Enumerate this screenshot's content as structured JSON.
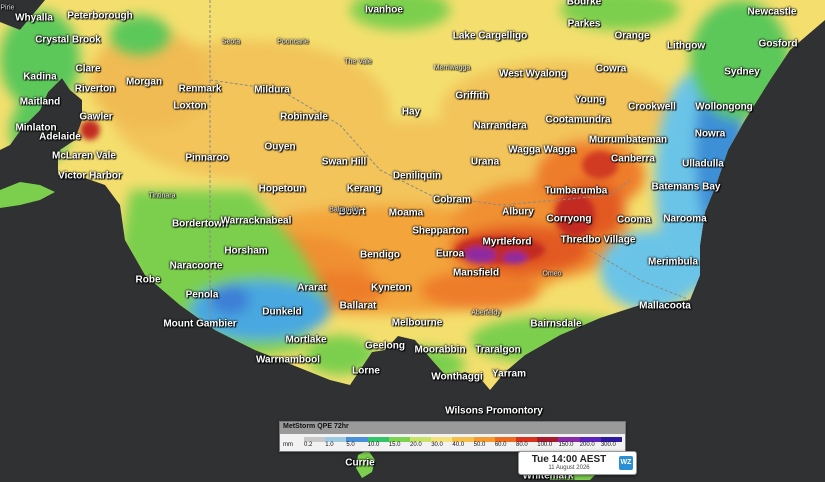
{
  "legend": {
    "title": "MetStorm QPE 72hr",
    "unit": "mm",
    "values": [
      "0.2",
      "1.0",
      "5.0",
      "10.0",
      "15.0",
      "20.0",
      "30.0",
      "40.0",
      "50.0",
      "60.0",
      "80.0",
      "100.0",
      "150.0",
      "200.0",
      "300.0"
    ],
    "colors": [
      "#c8c8c8",
      "#9ecae1",
      "#4a90d9",
      "#31c46b",
      "#7bd44f",
      "#c8e36a",
      "#f5e27a",
      "#f5c04a",
      "#f59a2e",
      "#ec6b1f",
      "#d9331e",
      "#a81b2a",
      "#8a2aa8",
      "#5a23c0",
      "#2d1aa0"
    ]
  },
  "timestamp": {
    "main": "Tue 14:00 AEST",
    "date": "11 August 2026",
    "logo": "WZ"
  },
  "colors": {
    "ocean": "#2f3133",
    "border": "#8a8a8a"
  },
  "places": [
    {
      "name": "Whyalla",
      "size": "major"
    },
    {
      "name": "Peterborough",
      "size": "major"
    },
    {
      "name": "Ivanhoe",
      "size": "major"
    },
    {
      "name": "Parkes",
      "size": "major"
    },
    {
      "name": "Newcastle",
      "size": "major"
    },
    {
      "name": "Crystal Brook",
      "size": "major"
    },
    {
      "name": "Orange",
      "size": "major"
    },
    {
      "name": "Gosford",
      "size": "major"
    },
    {
      "name": "Lake Cargelligo",
      "size": "major"
    },
    {
      "name": "Lithgow",
      "size": "major"
    },
    {
      "name": "Clare",
      "size": "major"
    },
    {
      "name": "West Wyalong",
      "size": "major"
    },
    {
      "name": "Cowra",
      "size": "major"
    },
    {
      "name": "Sydney",
      "size": "major"
    },
    {
      "name": "Kadina",
      "size": "major"
    },
    {
      "name": "Morgan",
      "size": "major"
    },
    {
      "name": "Riverton",
      "size": "major"
    },
    {
      "name": "Renmark",
      "size": "major"
    },
    {
      "name": "Mildura",
      "size": "major"
    },
    {
      "name": "Maitland",
      "size": "major"
    },
    {
      "name": "Griffith",
      "size": "major"
    },
    {
      "name": "Young",
      "size": "major"
    },
    {
      "name": "Loxton",
      "size": "major"
    },
    {
      "name": "Hay",
      "size": "major"
    },
    {
      "name": "Crookwell",
      "size": "major"
    },
    {
      "name": "Wollongong",
      "size": "major"
    },
    {
      "name": "Robinvale",
      "size": "major"
    },
    {
      "name": "Gawler",
      "size": "major"
    },
    {
      "name": "Cootamundra",
      "size": "major"
    },
    {
      "name": "Minlaton",
      "size": "major"
    },
    {
      "name": "Narrandera",
      "size": "major"
    },
    {
      "name": "Adelaide",
      "size": "major"
    },
    {
      "name": "Murrumbateman",
      "size": "major"
    },
    {
      "name": "Nowra",
      "size": "major"
    },
    {
      "name": "Ouyen",
      "size": "major"
    },
    {
      "name": "McLaren Vale",
      "size": "major"
    },
    {
      "name": "Wagga Wagga",
      "size": "major"
    },
    {
      "name": "Pinnaroo",
      "size": "major"
    },
    {
      "name": "Swan Hill",
      "size": "major"
    },
    {
      "name": "Urana",
      "size": "major"
    },
    {
      "name": "Canberra",
      "size": "major"
    },
    {
      "name": "Ulladulla",
      "size": "major"
    },
    {
      "name": "Victor Harbor",
      "size": "major"
    },
    {
      "name": "Deniliquin",
      "size": "major"
    },
    {
      "name": "Hopetoun",
      "size": "major"
    },
    {
      "name": "Kerang",
      "size": "major"
    },
    {
      "name": "Tumbarumba",
      "size": "major"
    },
    {
      "name": "Batemans Bay",
      "size": "major"
    },
    {
      "name": "Cobram",
      "size": "major"
    },
    {
      "name": "Albury",
      "size": "major"
    },
    {
      "name": "Boort",
      "size": "major"
    },
    {
      "name": "Moama",
      "size": "major"
    },
    {
      "name": "Corryong",
      "size": "major"
    },
    {
      "name": "Bordertown",
      "size": "major"
    },
    {
      "name": "Warracknabeal",
      "size": "major"
    },
    {
      "name": "Cooma",
      "size": "major"
    },
    {
      "name": "Narooma",
      "size": "major"
    },
    {
      "name": "Shepparton",
      "size": "major"
    },
    {
      "name": "Thredbo Village",
      "size": "major"
    },
    {
      "name": "Myrtleford",
      "size": "major"
    },
    {
      "name": "Horsham",
      "size": "major"
    },
    {
      "name": "Bendigo",
      "size": "major"
    },
    {
      "name": "Euroa",
      "size": "major"
    },
    {
      "name": "Naracoorte",
      "size": "major"
    },
    {
      "name": "Merimbula",
      "size": "major"
    },
    {
      "name": "Mansfield",
      "size": "major"
    },
    {
      "name": "Robe",
      "size": "major"
    },
    {
      "name": "Ararat",
      "size": "major"
    },
    {
      "name": "Kyneton",
      "size": "major"
    },
    {
      "name": "Penola",
      "size": "major"
    },
    {
      "name": "Ballarat",
      "size": "major"
    },
    {
      "name": "Mallacoota",
      "size": "major"
    },
    {
      "name": "Dunkeld",
      "size": "major"
    },
    {
      "name": "Bairnsdale",
      "size": "major"
    },
    {
      "name": "Mount Gambier",
      "size": "major"
    },
    {
      "name": "Melbourne",
      "size": "major"
    },
    {
      "name": "Mortlake",
      "size": "major"
    },
    {
      "name": "Geelong",
      "size": "major"
    },
    {
      "name": "Traralgon",
      "size": "major"
    },
    {
      "name": "Moorabbin",
      "size": "major"
    },
    {
      "name": "Warrnambool",
      "size": "major"
    },
    {
      "name": "Lorne",
      "size": "major"
    },
    {
      "name": "Wonthaggi",
      "size": "major"
    },
    {
      "name": "Yarram",
      "size": "major"
    },
    {
      "name": "Wilsons Promontory",
      "size": "major"
    },
    {
      "name": "Currie",
      "size": "major"
    },
    {
      "name": "Whitemark",
      "size": "major"
    },
    {
      "name": "Bourke",
      "size": "major"
    },
    {
      "name": "Seota",
      "size": "minor"
    },
    {
      "name": "Pooncarie",
      "size": "minor"
    },
    {
      "name": "The Vale",
      "size": "minor"
    },
    {
      "name": "Merriwagga",
      "size": "minor"
    },
    {
      "name": "Tintinara",
      "size": "minor"
    },
    {
      "name": "Omeo",
      "size": "minor"
    },
    {
      "name": "Aberfeldy",
      "size": "minor"
    },
    {
      "name": "Balranald",
      "size": "minor"
    },
    {
      "name": "Port Pirie",
      "size": "minor"
    }
  ]
}
